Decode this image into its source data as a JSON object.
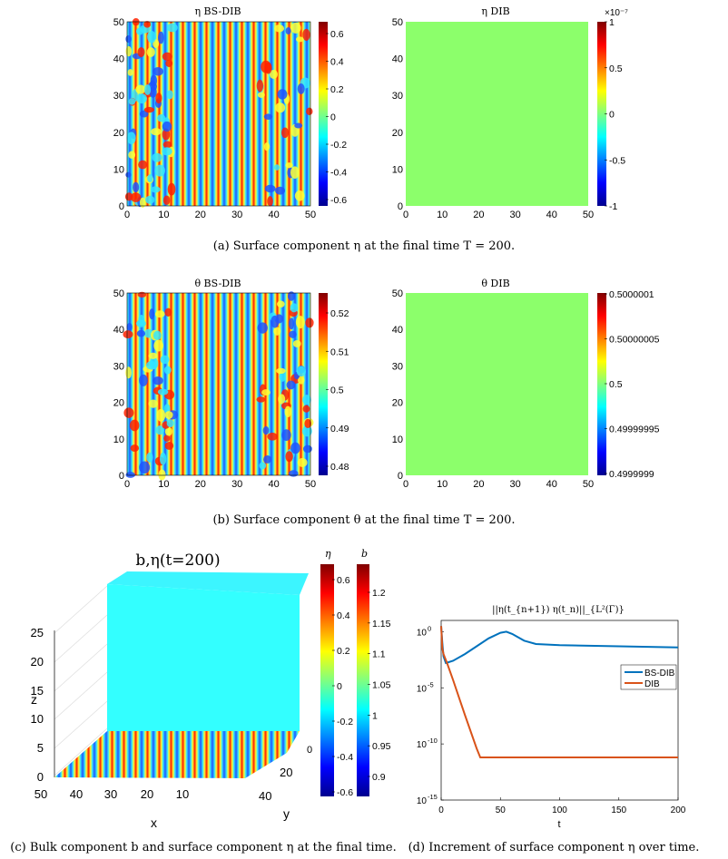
{
  "colors": {
    "dib_field": "#8cff6b",
    "cyan_field": "#33ffff",
    "series_bsdib": "#0072bd",
    "series_dib": "#d95319"
  },
  "panel_a": {
    "left_title": "η BS-DIB",
    "right_title": "η DIB",
    "left_x_ticks": [
      "0",
      "10",
      "20",
      "30",
      "40",
      "50"
    ],
    "left_y_ticks": [
      "0",
      "10",
      "20",
      "30",
      "40",
      "50"
    ],
    "right_x_ticks": [
      "0",
      "10",
      "20",
      "30",
      "40",
      "50"
    ],
    "right_y_ticks": [
      "0",
      "10",
      "20",
      "30",
      "40",
      "50"
    ],
    "left_colorbar_ticks": [
      "0.6",
      "0.4",
      "0.2",
      "0",
      "-0.2",
      "-0.4",
      "-0.6"
    ],
    "right_colorbar_exponent": "×10⁻⁷",
    "right_colorbar_ticks": [
      "1",
      "0.5",
      "0",
      "-0.5",
      "-1"
    ],
    "caption": "(a)  Surface component η at the final time T = 200."
  },
  "panel_b": {
    "left_title": "θ BS-DIB",
    "right_title": "θ DIB",
    "left_x_ticks": [
      "0",
      "10",
      "20",
      "30",
      "40",
      "50"
    ],
    "left_y_ticks": [
      "0",
      "10",
      "20",
      "30",
      "40",
      "50"
    ],
    "right_x_ticks": [
      "0",
      "10",
      "20",
      "30",
      "40",
      "50"
    ],
    "right_y_ticks": [
      "0",
      "10",
      "20",
      "30",
      "40",
      "50"
    ],
    "left_colorbar_ticks": [
      "0.52",
      "0.51",
      "0.5",
      "0.49",
      "0.48"
    ],
    "right_colorbar_ticks": [
      "0.5000001",
      "0.50000005",
      "0.5",
      "0.49999995",
      "0.4999999"
    ],
    "caption": "(b)  Surface component θ at the final time T = 200."
  },
  "panel_c": {
    "title": "b,η(t=200)",
    "z_label": "z",
    "x_label": "x",
    "y_label": "y",
    "z_ticks": [
      "0",
      "5",
      "10",
      "15",
      "20",
      "25"
    ],
    "x_ticks": [
      "50",
      "40",
      "30",
      "20",
      "10",
      "0"
    ],
    "y_ticks": [
      "20",
      "40"
    ],
    "eta_label": "η",
    "b_label": "b",
    "eta_ticks": [
      "0.6",
      "0.4",
      "0.2",
      "0",
      "-0.2",
      "-0.4",
      "-0.6"
    ],
    "b_ticks": [
      "1.2",
      "1.15",
      "1.1",
      "1.05",
      "1",
      "0.95",
      "0.9"
    ],
    "caption": "(c)  Bulk component b and surface component η at the final time."
  },
  "panel_d": {
    "caption": "(d)  Increment of surface component η over time."
  },
  "chart_data": [
    {
      "type": "heatmap",
      "title": "η BS-DIB",
      "xlim": [
        0,
        50
      ],
      "ylim": [
        0,
        50
      ],
      "colorbar_range": [
        -0.65,
        0.65
      ],
      "description_values": "mostly vertical stripe pattern with spots near edges"
    },
    {
      "type": "heatmap",
      "title": "η DIB",
      "xlim": [
        0,
        50
      ],
      "ylim": [
        0,
        50
      ],
      "colorbar_range": [
        -1e-07,
        1e-07
      ],
      "constant_value": 0
    },
    {
      "type": "heatmap",
      "title": "θ BS-DIB",
      "xlim": [
        0,
        50
      ],
      "ylim": [
        0,
        50
      ],
      "colorbar_range": [
        0.475,
        0.525
      ]
    },
    {
      "type": "heatmap",
      "title": "θ DIB",
      "xlim": [
        0,
        50
      ],
      "ylim": [
        0,
        50
      ],
      "colorbar_range": [
        0.4999999,
        0.5000001
      ],
      "constant_value": 0.5
    },
    {
      "type": "line",
      "title": "||η(t_{n+1})   η(t_n)||_{L²(Γ)}",
      "xlabel": "t",
      "ylabel": "",
      "xlim": [
        0,
        200
      ],
      "ylim_log10": [
        -15,
        1
      ],
      "yscale": "log",
      "x_ticks": [
        "0",
        "50",
        "100",
        "150",
        "200"
      ],
      "y_tick_exponents": [
        0,
        -5,
        -10,
        -15
      ],
      "legend_position": "right-middle",
      "series": [
        {
          "name": "BS-DIB",
          "x": [
            0,
            1,
            2,
            4,
            10,
            20,
            30,
            40,
            50,
            55,
            60,
            70,
            80,
            100,
            150,
            200
          ],
          "log10_y": [
            0.5,
            -1.0,
            -2.2,
            -2.8,
            -2.6,
            -2.0,
            -1.3,
            -0.6,
            -0.1,
            0.0,
            -0.2,
            -0.8,
            -1.1,
            -1.2,
            -1.3,
            -1.4
          ]
        },
        {
          "name": "DIB",
          "x": [
            0,
            1,
            2,
            5,
            10,
            20,
            30,
            33,
            50,
            100,
            150,
            200
          ],
          "log10_y": [
            0.5,
            -1.5,
            -2.0,
            -2.8,
            -4.3,
            -7.4,
            -10.4,
            -11.2,
            -11.2,
            -11.2,
            -11.2,
            -11.2
          ]
        }
      ]
    }
  ]
}
